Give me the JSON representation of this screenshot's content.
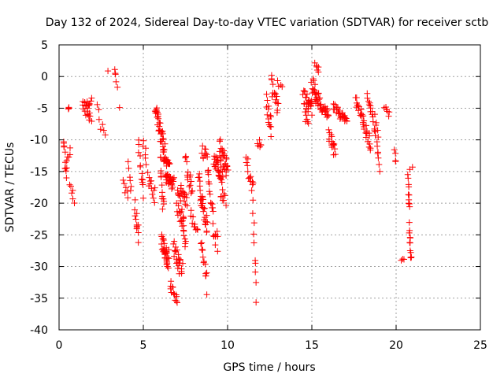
{
  "chart_data": {
    "type": "scatter",
    "title": "Day 132 of 2024, Sidereal Day-to-day VTEC variation (SDTVAR) for receiver sctb",
    "xlabel": "GPS time / hours",
    "ylabel": "SDTVAR / TECUs",
    "xlim": [
      0,
      25
    ],
    "ylim": [
      -40,
      5
    ],
    "x_ticks": [
      0,
      5,
      10,
      15,
      20,
      25
    ],
    "y_ticks": [
      5,
      0,
      -5,
      -10,
      -15,
      -20,
      -25,
      -30,
      -35,
      -40
    ],
    "x_tick_labels": [
      "0",
      "5",
      "10",
      "15",
      "20",
      "25"
    ],
    "y_tick_labels": [
      "5",
      "0",
      "-5",
      "-10",
      "-15",
      "-20",
      "-25",
      "-30",
      "-35",
      "-40"
    ],
    "grid": true,
    "marker": "plus",
    "color": "#ff0000",
    "series": [
      {
        "name": "sctb",
        "segments": [
          {
            "x0": 0.25,
            "x1": 0.45,
            "y0": -10,
            "y1": -15,
            "noise": 1.2,
            "n": 10
          },
          {
            "x0": 0.45,
            "x1": 0.65,
            "y0": -15,
            "y1": -11,
            "noise": 1.0,
            "n": 6
          },
          {
            "x0": 0.55,
            "x1": 0.6,
            "y0": -5,
            "y1": -5,
            "noise": 0.2,
            "n": 3
          },
          {
            "x0": 0.65,
            "x1": 0.9,
            "y0": -17,
            "y1": -20,
            "noise": 1.0,
            "n": 6
          },
          {
            "x0": 1.4,
            "x1": 1.9,
            "y0": -4,
            "y1": -7,
            "noise": 1.0,
            "n": 16
          },
          {
            "x0": 1.55,
            "x1": 1.95,
            "y0": -4,
            "y1": -4,
            "noise": 0.6,
            "n": 8
          },
          {
            "x0": 2.3,
            "x1": 2.45,
            "y0": -5,
            "y1": -8,
            "noise": 0.8,
            "n": 4
          },
          {
            "x0": 2.6,
            "x1": 2.75,
            "y0": -8,
            "y1": -9,
            "noise": 0.5,
            "n": 3
          },
          {
            "x0": 2.9,
            "x1": 2.9,
            "y0": 0.9,
            "y1": 0.9,
            "noise": 0.1,
            "n": 1
          },
          {
            "x0": 3.3,
            "x1": 3.45,
            "y0": 1.5,
            "y1": -1.5,
            "noise": 0.5,
            "n": 5
          },
          {
            "x0": 3.55,
            "x1": 3.55,
            "y0": -4.8,
            "y1": -4.8,
            "noise": 0.1,
            "n": 1
          },
          {
            "x0": 3.8,
            "x1": 4.1,
            "y0": -17,
            "y1": -19,
            "noise": 0.8,
            "n": 6
          },
          {
            "x0": 4.1,
            "x1": 4.3,
            "y0": -14,
            "y1": -18,
            "noise": 1.0,
            "n": 6
          },
          {
            "x0": 4.5,
            "x1": 4.7,
            "y0": -20,
            "y1": -25,
            "noise": 1.5,
            "n": 12
          },
          {
            "x0": 4.7,
            "x1": 5.0,
            "y0": -12,
            "y1": -19,
            "noise": 2.0,
            "n": 12
          },
          {
            "x0": 5.0,
            "x1": 5.2,
            "y0": -10,
            "y1": -14,
            "noise": 1.5,
            "n": 6
          },
          {
            "x0": 5.3,
            "x1": 5.7,
            "y0": -16,
            "y1": -19,
            "noise": 1.2,
            "n": 12
          },
          {
            "x0": 5.7,
            "x1": 6.3,
            "y0": -5,
            "y1": -12,
            "noise": 1.5,
            "n": 40
          },
          {
            "x0": 6.0,
            "x1": 6.2,
            "y0": -14,
            "y1": -21,
            "noise": 2.0,
            "n": 14
          },
          {
            "x0": 6.2,
            "x1": 6.6,
            "y0": -13,
            "y1": -14,
            "noise": 0.6,
            "n": 16
          },
          {
            "x0": 6.1,
            "x1": 6.5,
            "y0": -26,
            "y1": -29,
            "noise": 1.5,
            "n": 34
          },
          {
            "x0": 6.3,
            "x1": 6.8,
            "y0": -16,
            "y1": -17,
            "noise": 1.0,
            "n": 30
          },
          {
            "x0": 6.6,
            "x1": 7.0,
            "y0": -33,
            "y1": -36,
            "noise": 1.0,
            "n": 14
          },
          {
            "x0": 6.8,
            "x1": 7.3,
            "y0": -27,
            "y1": -31,
            "noise": 1.5,
            "n": 24
          },
          {
            "x0": 7.0,
            "x1": 7.5,
            "y0": -19,
            "y1": -25,
            "noise": 2.0,
            "n": 30
          },
          {
            "x0": 7.2,
            "x1": 7.6,
            "y0": -17,
            "y1": -20,
            "noise": 1.0,
            "n": 14
          },
          {
            "x0": 7.5,
            "x1": 7.9,
            "y0": -12,
            "y1": -20,
            "noise": 2.0,
            "n": 16
          },
          {
            "x0": 7.8,
            "x1": 8.2,
            "y0": -22,
            "y1": -24,
            "noise": 1.0,
            "n": 10
          },
          {
            "x0": 8.3,
            "x1": 8.8,
            "y0": -16,
            "y1": -24,
            "noise": 2.0,
            "n": 30
          },
          {
            "x0": 8.4,
            "x1": 8.8,
            "y0": -25,
            "y1": -33,
            "noise": 2.0,
            "n": 14
          },
          {
            "x0": 8.5,
            "x1": 8.9,
            "y0": -11,
            "y1": -15,
            "noise": 1.5,
            "n": 14
          },
          {
            "x0": 8.9,
            "x1": 9.4,
            "y0": -18,
            "y1": -27,
            "noise": 2.0,
            "n": 20
          },
          {
            "x0": 9.2,
            "x1": 9.7,
            "y0": -13,
            "y1": -16,
            "noise": 1.2,
            "n": 30
          },
          {
            "x0": 9.5,
            "x1": 10.0,
            "y0": -11,
            "y1": -15,
            "noise": 1.5,
            "n": 28
          },
          {
            "x0": 9.6,
            "x1": 9.9,
            "y0": -18,
            "y1": -20,
            "noise": 1.0,
            "n": 8
          },
          {
            "x0": 11.1,
            "x1": 11.5,
            "y0": -13,
            "y1": -18,
            "noise": 1.5,
            "n": 14
          },
          {
            "x0": 11.5,
            "x1": 11.7,
            "y0": -20,
            "y1": -35,
            "noise": 1.0,
            "n": 10
          },
          {
            "x0": 11.8,
            "x1": 12.0,
            "y0": -10,
            "y1": -11,
            "noise": 0.8,
            "n": 6
          },
          {
            "x0": 12.3,
            "x1": 12.6,
            "y0": -4,
            "y1": -8,
            "noise": 1.5,
            "n": 14
          },
          {
            "x0": 12.6,
            "x1": 13.0,
            "y0": -1,
            "y1": -5,
            "noise": 1.5,
            "n": 16
          },
          {
            "x0": 13.0,
            "x1": 13.2,
            "y0": -1,
            "y1": -2,
            "noise": 0.5,
            "n": 4
          },
          {
            "x0": 14.5,
            "x1": 15.0,
            "y0": -3,
            "y1": -5,
            "noise": 1.5,
            "n": 26
          },
          {
            "x0": 14.6,
            "x1": 14.8,
            "y0": -6,
            "y1": -8,
            "noise": 0.8,
            "n": 6
          },
          {
            "x0": 15.0,
            "x1": 15.4,
            "y0": -1,
            "y1": -4,
            "noise": 1.5,
            "n": 20
          },
          {
            "x0": 15.2,
            "x1": 15.4,
            "y0": 2,
            "y1": 1,
            "noise": 0.5,
            "n": 6
          },
          {
            "x0": 15.4,
            "x1": 16.0,
            "y0": -4,
            "y1": -6,
            "noise": 1.0,
            "n": 24
          },
          {
            "x0": 16.0,
            "x1": 16.4,
            "y0": -9,
            "y1": -12,
            "noise": 1.0,
            "n": 16
          },
          {
            "x0": 16.3,
            "x1": 17.1,
            "y0": -5,
            "y1": -7,
            "noise": 0.8,
            "n": 28
          },
          {
            "x0": 17.6,
            "x1": 18.0,
            "y0": -4,
            "y1": -6,
            "noise": 1.0,
            "n": 14
          },
          {
            "x0": 18.0,
            "x1": 18.5,
            "y0": -7,
            "y1": -11,
            "noise": 1.2,
            "n": 20
          },
          {
            "x0": 18.3,
            "x1": 18.9,
            "y0": -4,
            "y1": -9,
            "noise": 1.5,
            "n": 20
          },
          {
            "x0": 18.8,
            "x1": 19.0,
            "y0": -10,
            "y1": -15,
            "noise": 1.0,
            "n": 8
          },
          {
            "x0": 19.3,
            "x1": 19.6,
            "y0": -5,
            "y1": -6,
            "noise": 0.5,
            "n": 6
          },
          {
            "x0": 19.9,
            "x1": 20.0,
            "y0": -11,
            "y1": -14,
            "noise": 0.8,
            "n": 4
          },
          {
            "x0": 20.3,
            "x1": 20.5,
            "y0": -29,
            "y1": -29,
            "noise": 0.3,
            "n": 3
          },
          {
            "x0": 20.7,
            "x1": 20.9,
            "y0": -16,
            "y1": -30,
            "noise": 1.5,
            "n": 22
          },
          {
            "x0": 20.8,
            "x1": 20.95,
            "y0": -14.5,
            "y1": -14.5,
            "noise": 0.3,
            "n": 2
          }
        ]
      }
    ]
  }
}
